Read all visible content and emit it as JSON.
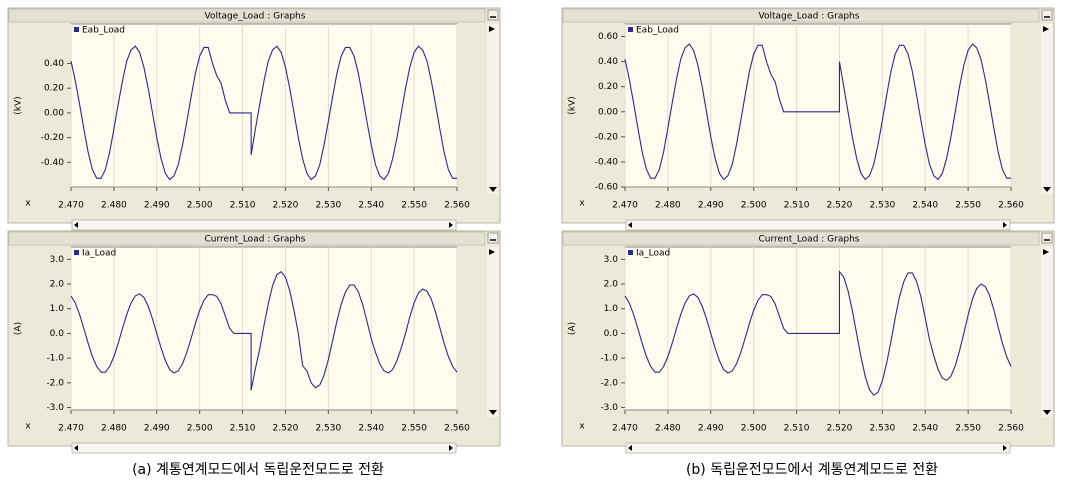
{
  "chart_data": [
    {
      "type": "line",
      "title": "Voltage_Load : Graphs",
      "y_label": "(kV)",
      "x_label": "x",
      "legend": "upper left",
      "grid": "x",
      "x": [
        2.47,
        2.471,
        2.472,
        2.473,
        2.474,
        2.475,
        2.476,
        2.477,
        2.478,
        2.479,
        2.48,
        2.481,
        2.482,
        2.483,
        2.484,
        2.485,
        2.486,
        2.487,
        2.488,
        2.489,
        2.49,
        2.491,
        2.492,
        2.493,
        2.494,
        2.495,
        2.496,
        2.497,
        2.498,
        2.499,
        2.5,
        2.501,
        2.502,
        2.503,
        2.504,
        2.505,
        2.506,
        2.507,
        2.508,
        2.509,
        2.51,
        2.511,
        2.512,
        2.512,
        2.513,
        2.514,
        2.515,
        2.516,
        2.517,
        2.518,
        2.519,
        2.52,
        2.521,
        2.522,
        2.523,
        2.524,
        2.525,
        2.526,
        2.527,
        2.528,
        2.529,
        2.53,
        2.531,
        2.532,
        2.533,
        2.534,
        2.535,
        2.536,
        2.537,
        2.538,
        2.539,
        2.54,
        2.541,
        2.542,
        2.543,
        2.544,
        2.545,
        2.546,
        2.547,
        2.548,
        2.549,
        2.55,
        2.551,
        2.552,
        2.553,
        2.554,
        2.555,
        2.556,
        2.557,
        2.558,
        2.559,
        2.56
      ],
      "series": [
        {
          "name": "Eab_Load",
          "color": "#2a2a8a",
          "values": [
            0.42,
            0.26,
            0.07,
            -0.13,
            -0.32,
            -0.46,
            -0.53,
            -0.53,
            -0.46,
            -0.32,
            -0.13,
            0.07,
            0.26,
            0.42,
            0.51,
            0.54,
            0.49,
            0.37,
            0.2,
            0,
            -0.2,
            -0.37,
            -0.49,
            -0.54,
            -0.51,
            -0.42,
            -0.26,
            -0.07,
            0.13,
            0.32,
            0.46,
            0.53,
            0.53,
            0.4,
            0.3,
            0.24,
            0.1,
            0,
            0,
            0,
            0,
            0,
            0,
            -0.34,
            -0.13,
            0.07,
            0.26,
            0.42,
            0.51,
            0.54,
            0.49,
            0.37,
            0.2,
            0,
            -0.2,
            -0.37,
            -0.49,
            -0.54,
            -0.51,
            -0.42,
            -0.26,
            -0.07,
            0.13,
            0.32,
            0.46,
            0.53,
            0.53,
            0.46,
            0.32,
            0.13,
            -0.07,
            -0.26,
            -0.42,
            -0.51,
            -0.54,
            -0.49,
            -0.37,
            -0.2,
            0,
            0.2,
            0.37,
            0.49,
            0.54,
            0.51,
            0.42,
            0.26,
            0.07,
            -0.13,
            -0.32,
            -0.46,
            -0.53,
            -0.53
          ]
        }
      ],
      "xlim": [
        2.47,
        2.56
      ],
      "ylim": [
        -0.6,
        0.72
      ],
      "xticks": [
        {
          "value": 2.47,
          "label": "2.470"
        },
        {
          "value": 2.48,
          "label": "2.480"
        },
        {
          "value": 2.49,
          "label": "2.490"
        },
        {
          "value": 2.5,
          "label": "2.500"
        },
        {
          "value": 2.51,
          "label": "2.510"
        },
        {
          "value": 2.52,
          "label": "2.520"
        },
        {
          "value": 2.53,
          "label": "2.530"
        },
        {
          "value": 2.54,
          "label": "2.540"
        },
        {
          "value": 2.55,
          "label": "2.550"
        },
        {
          "value": 2.56,
          "label": "2.560"
        }
      ],
      "yticks": [
        {
          "value": 0.4,
          "label": "0.40"
        },
        {
          "value": 0.2,
          "label": "0.20"
        },
        {
          "value": 0,
          "label": "0.00"
        },
        {
          "value": -0.2,
          "label": "-0.20"
        },
        {
          "value": -0.4,
          "label": "-0.40"
        }
      ]
    },
    {
      "type": "line",
      "title": "Current_Load : Graphs",
      "y_label": "(A)",
      "x_label": "x",
      "legend": "upper left",
      "grid": "x",
      "x": [
        2.47,
        2.471,
        2.472,
        2.473,
        2.474,
        2.475,
        2.476,
        2.477,
        2.478,
        2.479,
        2.48,
        2.481,
        2.482,
        2.483,
        2.484,
        2.485,
        2.486,
        2.487,
        2.488,
        2.489,
        2.49,
        2.491,
        2.492,
        2.493,
        2.494,
        2.495,
        2.496,
        2.497,
        2.498,
        2.499,
        2.5,
        2.501,
        2.502,
        2.503,
        2.504,
        2.505,
        2.506,
        2.507,
        2.508,
        2.509,
        2.51,
        2.511,
        2.512,
        2.512,
        2.513,
        2.514,
        2.515,
        2.516,
        2.517,
        2.518,
        2.519,
        2.52,
        2.521,
        2.522,
        2.523,
        2.524,
        2.525,
        2.526,
        2.527,
        2.528,
        2.529,
        2.53,
        2.531,
        2.532,
        2.533,
        2.534,
        2.535,
        2.536,
        2.537,
        2.538,
        2.539,
        2.54,
        2.541,
        2.542,
        2.543,
        2.544,
        2.545,
        2.546,
        2.547,
        2.548,
        2.549,
        2.55,
        2.551,
        2.552,
        2.553,
        2.554,
        2.555,
        2.556,
        2.557,
        2.558,
        2.559,
        2.56
      ],
      "series": [
        {
          "name": "Ia_Load",
          "color": "#2a2a8a",
          "values": [
            1.52,
            1.23,
            0.77,
            0.2,
            -0.4,
            -0.94,
            -1.34,
            -1.57,
            -1.57,
            -1.34,
            -0.94,
            -0.4,
            0.2,
            0.77,
            1.23,
            1.52,
            1.6,
            1.46,
            1.1,
            0.59,
            0,
            -0.59,
            -1.1,
            -1.46,
            -1.6,
            -1.52,
            -1.23,
            -0.77,
            -0.2,
            0.4,
            0.94,
            1.34,
            1.57,
            1.57,
            1.5,
            1.2,
            0.7,
            0.2,
            0,
            0,
            0,
            0,
            0,
            -2.3,
            -1.42,
            -0.63,
            0.33,
            1.2,
            1.93,
            2.38,
            2.5,
            2.28,
            1.73,
            0.93,
            0,
            -1.3,
            -1.52,
            -2.0,
            -2.2,
            -2.09,
            -1.69,
            -1.06,
            -0.29,
            0.5,
            1.18,
            1.68,
            1.96,
            1.96,
            1.68,
            1.18,
            0.5,
            -0.21,
            -0.77,
            -1.23,
            -1.52,
            -1.6,
            -1.46,
            -1.1,
            -0.59,
            0,
            0.67,
            1.24,
            1.64,
            1.8,
            1.71,
            1.39,
            0.86,
            0.23,
            -0.4,
            -0.94,
            -1.34,
            -1.57
          ]
        }
      ],
      "xlim": [
        2.47,
        2.56
      ],
      "ylim": [
        -3.1,
        3.5
      ],
      "xticks": [
        {
          "value": 2.47,
          "label": "2.470"
        },
        {
          "value": 2.48,
          "label": "2.480"
        },
        {
          "value": 2.49,
          "label": "2.490"
        },
        {
          "value": 2.5,
          "label": "2.500"
        },
        {
          "value": 2.51,
          "label": "2.510"
        },
        {
          "value": 2.52,
          "label": "2.520"
        },
        {
          "value": 2.53,
          "label": "2.530"
        },
        {
          "value": 2.54,
          "label": "2.540"
        },
        {
          "value": 2.55,
          "label": "2.550"
        },
        {
          "value": 2.56,
          "label": "2.560"
        }
      ],
      "yticks": [
        {
          "value": 3,
          "label": "3.0"
        },
        {
          "value": 2,
          "label": "2.0"
        },
        {
          "value": 1,
          "label": "1.0"
        },
        {
          "value": 0,
          "label": "0.0"
        },
        {
          "value": -1,
          "label": "-1.0"
        },
        {
          "value": -2,
          "label": "-2.0"
        },
        {
          "value": -3,
          "label": "-3.0"
        }
      ]
    },
    {
      "type": "line",
      "title": "Voltage_Load : Graphs",
      "y_label": "(kV)",
      "x_label": "x",
      "legend": "upper left",
      "grid": "x",
      "x": [
        2.47,
        2.471,
        2.472,
        2.473,
        2.474,
        2.475,
        2.476,
        2.477,
        2.478,
        2.479,
        2.48,
        2.481,
        2.482,
        2.483,
        2.484,
        2.485,
        2.486,
        2.487,
        2.488,
        2.489,
        2.49,
        2.491,
        2.492,
        2.493,
        2.494,
        2.495,
        2.496,
        2.497,
        2.498,
        2.499,
        2.5,
        2.501,
        2.502,
        2.503,
        2.504,
        2.505,
        2.506,
        2.507,
        2.508,
        2.509,
        2.51,
        2.511,
        2.512,
        2.513,
        2.514,
        2.515,
        2.516,
        2.517,
        2.518,
        2.519,
        2.52,
        2.52,
        2.521,
        2.522,
        2.523,
        2.524,
        2.525,
        2.526,
        2.527,
        2.528,
        2.529,
        2.53,
        2.531,
        2.532,
        2.533,
        2.534,
        2.535,
        2.536,
        2.537,
        2.538,
        2.539,
        2.54,
        2.541,
        2.542,
        2.543,
        2.544,
        2.545,
        2.546,
        2.547,
        2.548,
        2.549,
        2.55,
        2.551,
        2.552,
        2.553,
        2.554,
        2.555,
        2.556,
        2.557,
        2.558,
        2.559,
        2.56
      ],
      "series": [
        {
          "name": "Eab_Load",
          "color": "#2a2a8a",
          "values": [
            0.42,
            0.26,
            0.07,
            -0.13,
            -0.32,
            -0.46,
            -0.53,
            -0.53,
            -0.46,
            -0.32,
            -0.13,
            0.07,
            0.26,
            0.42,
            0.51,
            0.54,
            0.49,
            0.37,
            0.2,
            0,
            -0.2,
            -0.37,
            -0.49,
            -0.54,
            -0.51,
            -0.42,
            -0.26,
            -0.07,
            0.13,
            0.32,
            0.46,
            0.53,
            0.53,
            0.4,
            0.3,
            0.24,
            0.1,
            0,
            0,
            0,
            0,
            0,
            0,
            0,
            0,
            0,
            0,
            0,
            0,
            0,
            0,
            0.4,
            0.2,
            0,
            -0.2,
            -0.37,
            -0.49,
            -0.54,
            -0.51,
            -0.42,
            -0.26,
            -0.07,
            0.13,
            0.32,
            0.46,
            0.53,
            0.53,
            0.46,
            0.32,
            0.13,
            -0.07,
            -0.26,
            -0.42,
            -0.51,
            -0.54,
            -0.49,
            -0.37,
            -0.2,
            0,
            0.2,
            0.37,
            0.49,
            0.54,
            0.51,
            0.42,
            0.26,
            0.07,
            -0.13,
            -0.32,
            -0.46,
            -0.53,
            -0.53
          ]
        }
      ],
      "xlim": [
        2.47,
        2.56
      ],
      "ylim": [
        -0.6,
        0.7
      ],
      "xticks": [
        {
          "value": 2.47,
          "label": "2.470"
        },
        {
          "value": 2.48,
          "label": "2.480"
        },
        {
          "value": 2.49,
          "label": "2.490"
        },
        {
          "value": 2.5,
          "label": "2.500"
        },
        {
          "value": 2.51,
          "label": "2.510"
        },
        {
          "value": 2.52,
          "label": "2.520"
        },
        {
          "value": 2.53,
          "label": "2.530"
        },
        {
          "value": 2.54,
          "label": "2.540"
        },
        {
          "value": 2.55,
          "label": "2.550"
        },
        {
          "value": 2.56,
          "label": "2.560"
        }
      ],
      "yticks": [
        {
          "value": 0.6,
          "label": "0.60"
        },
        {
          "value": 0.4,
          "label": "0.40"
        },
        {
          "value": 0.2,
          "label": "0.20"
        },
        {
          "value": 0,
          "label": "0.00"
        },
        {
          "value": -0.2,
          "label": "-0.20"
        },
        {
          "value": -0.4,
          "label": "-0.40"
        },
        {
          "value": -0.6,
          "label": "-0.60"
        }
      ]
    },
    {
      "type": "line",
      "title": "Current_Load : Graphs",
      "y_label": "(A)",
      "x_label": "x",
      "legend": "upper left",
      "grid": "x",
      "x": [
        2.47,
        2.471,
        2.472,
        2.473,
        2.474,
        2.475,
        2.476,
        2.477,
        2.478,
        2.479,
        2.48,
        2.481,
        2.482,
        2.483,
        2.484,
        2.485,
        2.486,
        2.487,
        2.488,
        2.489,
        2.49,
        2.491,
        2.492,
        2.493,
        2.494,
        2.495,
        2.496,
        2.497,
        2.498,
        2.499,
        2.5,
        2.501,
        2.502,
        2.503,
        2.504,
        2.505,
        2.506,
        2.507,
        2.508,
        2.509,
        2.51,
        2.511,
        2.512,
        2.513,
        2.514,
        2.515,
        2.516,
        2.517,
        2.518,
        2.519,
        2.52,
        2.52,
        2.521,
        2.522,
        2.523,
        2.524,
        2.525,
        2.526,
        2.527,
        2.528,
        2.529,
        2.53,
        2.531,
        2.532,
        2.533,
        2.534,
        2.535,
        2.536,
        2.537,
        2.538,
        2.539,
        2.54,
        2.541,
        2.542,
        2.543,
        2.544,
        2.545,
        2.546,
        2.547,
        2.548,
        2.549,
        2.55,
        2.551,
        2.552,
        2.553,
        2.554,
        2.555,
        2.556,
        2.557,
        2.558,
        2.559,
        2.56
      ],
      "series": [
        {
          "name": "Ia_Load",
          "color": "#2a2a8a",
          "values": [
            1.52,
            1.23,
            0.77,
            0.2,
            -0.4,
            -0.94,
            -1.34,
            -1.57,
            -1.57,
            -1.34,
            -0.94,
            -0.4,
            0.2,
            0.77,
            1.23,
            1.52,
            1.6,
            1.46,
            1.1,
            0.59,
            0,
            -0.59,
            -1.1,
            -1.46,
            -1.6,
            -1.52,
            -1.23,
            -0.77,
            -0.2,
            0.4,
            0.94,
            1.34,
            1.57,
            1.57,
            1.5,
            1.2,
            0.7,
            0.2,
            0,
            0,
            0,
            0,
            0,
            0,
            0,
            0,
            0,
            0,
            0,
            0,
            0,
            2.5,
            2.28,
            1.73,
            0.93,
            0,
            -0.93,
            -1.73,
            -2.28,
            -2.5,
            -2.38,
            -1.93,
            -1.2,
            -0.33,
            0.63,
            1.48,
            2.1,
            2.45,
            2.45,
            2.1,
            1.48,
            0.63,
            -0.25,
            -0.91,
            -1.46,
            -1.81,
            -1.9,
            -1.73,
            -1.31,
            -0.7,
            0,
            0.74,
            1.38,
            1.82,
            2.0,
            1.9,
            1.54,
            0.96,
            0.26,
            -0.4,
            -0.94,
            -1.34
          ]
        }
      ],
      "xlim": [
        2.47,
        2.56
      ],
      "ylim": [
        -3.1,
        3.5
      ],
      "xticks": [
        {
          "value": 2.47,
          "label": "2.470"
        },
        {
          "value": 2.48,
          "label": "2.480"
        },
        {
          "value": 2.49,
          "label": "2.490"
        },
        {
          "value": 2.5,
          "label": "2.500"
        },
        {
          "value": 2.51,
          "label": "2.510"
        },
        {
          "value": 2.52,
          "label": "2.520"
        },
        {
          "value": 2.53,
          "label": "2.530"
        },
        {
          "value": 2.54,
          "label": "2.540"
        },
        {
          "value": 2.55,
          "label": "2.550"
        },
        {
          "value": 2.56,
          "label": "2.560"
        }
      ],
      "yticks": [
        {
          "value": 3,
          "label": "3.0"
        },
        {
          "value": 2,
          "label": "2.0"
        },
        {
          "value": 1,
          "label": "1.0"
        },
        {
          "value": 0,
          "label": "0.0"
        },
        {
          "value": -1,
          "label": "-1.0"
        },
        {
          "value": -2,
          "label": "-2.0"
        },
        {
          "value": -3,
          "label": "-3.0"
        }
      ]
    }
  ],
  "captions": [
    "(a) 계통연계모드에서 독립운전모드로 전환",
    "(b) 독립운전모드에서 계통연계모드로 전환"
  ]
}
